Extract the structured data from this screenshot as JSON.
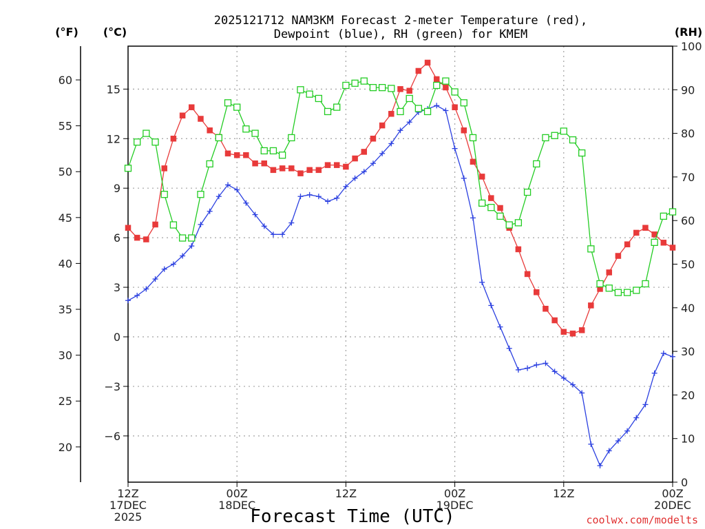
{
  "chart_data": {
    "type": "line",
    "title_line1": "2025121712 NAM3KM Forecast 2-meter Temperature (red),",
    "title_line2": "Dewpoint (blue), RH (green) for KMEM",
    "xlabel": "Forecast Time (UTC)",
    "credit": "coolwx.com/modelts",
    "units": {
      "fahrenheit": "(°F)",
      "celsius": "(°C)",
      "rh": "(RH)"
    },
    "x_range_hours": [
      0,
      60
    ],
    "x_ticks": [
      {
        "hour": 0,
        "lines": [
          "12Z",
          "17DEC",
          "2025"
        ]
      },
      {
        "hour": 12,
        "lines": [
          "00Z",
          "18DEC"
        ]
      },
      {
        "hour": 24,
        "lines": [
          "12Z"
        ]
      },
      {
        "hour": 36,
        "lines": [
          "00Z",
          "19DEC"
        ]
      },
      {
        "hour": 48,
        "lines": [
          "12Z"
        ]
      },
      {
        "hour": 60,
        "lines": [
          "00Z",
          "20DEC"
        ]
      }
    ],
    "y_left_celsius": {
      "range": [
        -8.8,
        17.6
      ],
      "ticks": [
        "15",
        "12",
        "9",
        "6",
        "3",
        "0",
        "−3",
        "−6"
      ],
      "tick_values": [
        15,
        12,
        9,
        6,
        3,
        0,
        -3,
        -6
      ]
    },
    "y_left_fahrenheit": {
      "ticks": [
        "60",
        "55",
        "50",
        "45",
        "40",
        "35",
        "30",
        "25",
        "20"
      ],
      "tick_values": [
        60,
        55,
        50,
        45,
        40,
        35,
        30,
        25,
        20
      ]
    },
    "y_right_rh": {
      "range": [
        0,
        100
      ],
      "ticks": [
        "100",
        "90",
        "80",
        "70",
        "60",
        "50",
        "40",
        "30",
        "20",
        "10",
        "0"
      ],
      "tick_values": [
        100,
        90,
        80,
        70,
        60,
        50,
        40,
        30,
        20,
        10,
        0
      ]
    },
    "grid": true,
    "series": [
      {
        "name": "Temperature (°C)",
        "color": "#e83a3a",
        "marker": "filled-square",
        "axis": "celsius",
        "points": [
          [
            0,
            6.6
          ],
          [
            1,
            6.0
          ],
          [
            2,
            5.9
          ],
          [
            3,
            6.8
          ],
          [
            4,
            10.2
          ],
          [
            5,
            12.0
          ],
          [
            6,
            13.4
          ],
          [
            7,
            13.9
          ],
          [
            8,
            13.2
          ],
          [
            9,
            12.5
          ],
          [
            10,
            12.1
          ],
          [
            11,
            11.1
          ],
          [
            12,
            11.0
          ],
          [
            13,
            11.0
          ],
          [
            14,
            10.5
          ],
          [
            15,
            10.5
          ],
          [
            16,
            10.1
          ],
          [
            17,
            10.2
          ],
          [
            18,
            10.2
          ],
          [
            19,
            9.9
          ],
          [
            20,
            10.1
          ],
          [
            21,
            10.1
          ],
          [
            22,
            10.4
          ],
          [
            23,
            10.4
          ],
          [
            24,
            10.3
          ],
          [
            25,
            10.8
          ],
          [
            26,
            11.2
          ],
          [
            27,
            12.0
          ],
          [
            28,
            12.8
          ],
          [
            29,
            13.5
          ],
          [
            30,
            15.0
          ],
          [
            31,
            14.9
          ],
          [
            32,
            16.1
          ],
          [
            33,
            16.6
          ],
          [
            34,
            15.6
          ],
          [
            35,
            15.1
          ],
          [
            36,
            13.9
          ],
          [
            37,
            12.5
          ],
          [
            38,
            10.6
          ],
          [
            39,
            9.7
          ],
          [
            40,
            8.4
          ],
          [
            41,
            7.8
          ],
          [
            42,
            6.6
          ],
          [
            43,
            5.3
          ],
          [
            44,
            3.8
          ],
          [
            45,
            2.7
          ],
          [
            46,
            1.7
          ],
          [
            47,
            1.0
          ],
          [
            48,
            0.3
          ],
          [
            49,
            0.2
          ],
          [
            50,
            0.4
          ],
          [
            51,
            1.9
          ],
          [
            52,
            2.9
          ],
          [
            53,
            3.9
          ],
          [
            54,
            4.9
          ],
          [
            55,
            5.6
          ],
          [
            56,
            6.3
          ],
          [
            57,
            6.6
          ],
          [
            58,
            6.2
          ],
          [
            59,
            5.7
          ],
          [
            60,
            5.4
          ]
        ]
      },
      {
        "name": "Dewpoint (°C)",
        "color": "#2a3fe0",
        "marker": "cross",
        "axis": "celsius",
        "points": [
          [
            0,
            2.2
          ],
          [
            1,
            2.5
          ],
          [
            2,
            2.9
          ],
          [
            3,
            3.5
          ],
          [
            4,
            4.1
          ],
          [
            5,
            4.4
          ],
          [
            6,
            4.9
          ],
          [
            7,
            5.5
          ],
          [
            8,
            6.8
          ],
          [
            9,
            7.6
          ],
          [
            10,
            8.5
          ],
          [
            11,
            9.2
          ],
          [
            12,
            8.9
          ],
          [
            13,
            8.1
          ],
          [
            14,
            7.4
          ],
          [
            15,
            6.7
          ],
          [
            16,
            6.2
          ],
          [
            17,
            6.2
          ],
          [
            18,
            6.9
          ],
          [
            19,
            8.5
          ],
          [
            20,
            8.6
          ],
          [
            21,
            8.5
          ],
          [
            22,
            8.2
          ],
          [
            23,
            8.4
          ],
          [
            24,
            9.1
          ],
          [
            25,
            9.6
          ],
          [
            26,
            10.0
          ],
          [
            27,
            10.5
          ],
          [
            28,
            11.1
          ],
          [
            29,
            11.7
          ],
          [
            30,
            12.5
          ],
          [
            31,
            13.0
          ],
          [
            32,
            13.6
          ],
          [
            33,
            13.8
          ],
          [
            34,
            14.0
          ],
          [
            35,
            13.7
          ],
          [
            36,
            11.4
          ],
          [
            37,
            9.6
          ],
          [
            38,
            7.2
          ],
          [
            39,
            3.3
          ],
          [
            40,
            1.9
          ],
          [
            41,
            0.6
          ],
          [
            42,
            -0.7
          ],
          [
            43,
            -2.0
          ],
          [
            44,
            -1.9
          ],
          [
            45,
            -1.7
          ],
          [
            46,
            -1.6
          ],
          [
            47,
            -2.1
          ],
          [
            48,
            -2.5
          ],
          [
            49,
            -2.9
          ],
          [
            50,
            -3.4
          ],
          [
            51,
            -6.5
          ],
          [
            52,
            -7.8
          ],
          [
            53,
            -6.9
          ],
          [
            54,
            -6.3
          ],
          [
            55,
            -5.7
          ],
          [
            56,
            -4.9
          ],
          [
            57,
            -4.1
          ],
          [
            58,
            -2.2
          ],
          [
            59,
            -1.0
          ],
          [
            60,
            -1.2
          ]
        ]
      },
      {
        "name": "RH (%)",
        "color": "#22cc22",
        "marker": "open-square",
        "axis": "rh",
        "points": [
          [
            0,
            72
          ],
          [
            1,
            78
          ],
          [
            2,
            80
          ],
          [
            3,
            78
          ],
          [
            4,
            66
          ],
          [
            5,
            59
          ],
          [
            6,
            56
          ],
          [
            7,
            56
          ],
          [
            8,
            66
          ],
          [
            9,
            73
          ],
          [
            10,
            79
          ],
          [
            11,
            87
          ],
          [
            12,
            86
          ],
          [
            13,
            81
          ],
          [
            14,
            80
          ],
          [
            15,
            76
          ],
          [
            16,
            76
          ],
          [
            17,
            75
          ],
          [
            18,
            79
          ],
          [
            19,
            90
          ],
          [
            20,
            89
          ],
          [
            21,
            88
          ],
          [
            22,
            85
          ],
          [
            23,
            86
          ],
          [
            24,
            91
          ],
          [
            25,
            91.5
          ],
          [
            26,
            92
          ],
          [
            27,
            90.5
          ],
          [
            28,
            90.5
          ],
          [
            29,
            90.3
          ],
          [
            30,
            85
          ],
          [
            31,
            88
          ],
          [
            32,
            85.7
          ],
          [
            33,
            85
          ],
          [
            34,
            91
          ],
          [
            35,
            92
          ],
          [
            36,
            89.5
          ],
          [
            37,
            87
          ],
          [
            38,
            79
          ],
          [
            39,
            64
          ],
          [
            40,
            63
          ],
          [
            41,
            61
          ],
          [
            42,
            59
          ],
          [
            43,
            59.5
          ],
          [
            44,
            66.5
          ],
          [
            45,
            73
          ],
          [
            46,
            79
          ],
          [
            47,
            79.5
          ],
          [
            48,
            80.5
          ],
          [
            49,
            78.5
          ],
          [
            50,
            75.5
          ],
          [
            51,
            53.5
          ],
          [
            52,
            45.5
          ],
          [
            53,
            44.5
          ],
          [
            54,
            43.5
          ],
          [
            55,
            43.5
          ],
          [
            56,
            44
          ],
          [
            57,
            45.5
          ],
          [
            58,
            55
          ],
          [
            59,
            61
          ],
          [
            60,
            62
          ]
        ]
      }
    ]
  }
}
